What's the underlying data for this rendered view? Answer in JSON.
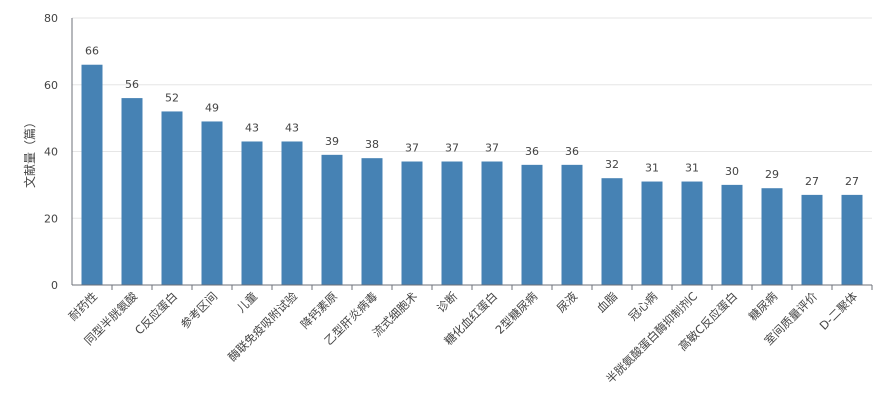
{
  "chart_data": {
    "type": "bar",
    "ylabel": "文献量（篇）",
    "ylim": [
      0,
      80
    ],
    "yticks": [
      0,
      20,
      40,
      60,
      80
    ],
    "grid": true,
    "bar_color": "#4682b4",
    "categories": [
      "耐药性",
      "同型半胱氨酸",
      "C反应蛋白",
      "参考区间",
      "儿童",
      "酶联免疫吸附试验",
      "降钙素原",
      "乙型肝炎病毒",
      "流式细胞术",
      "诊断",
      "糖化血红蛋白",
      "2型糖尿病",
      "尿液",
      "血脂",
      "冠心病",
      "半胱氨酸蛋白酶抑制剂C",
      "高敏C反应蛋白",
      "糖尿病",
      "室间质量评价",
      "D-二聚体"
    ],
    "values": [
      66,
      56,
      52,
      49,
      43,
      43,
      39,
      38,
      37,
      37,
      37,
      36,
      36,
      32,
      31,
      31,
      30,
      29,
      27,
      27
    ]
  }
}
